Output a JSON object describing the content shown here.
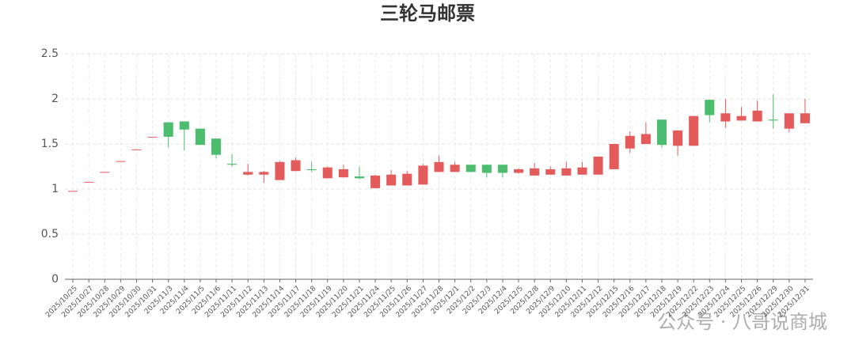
{
  "chart_data": {
    "type": "candlestick",
    "title": "三轮马邮票",
    "categories": [
      "2025/10/25",
      "2025/10/27",
      "2025/10/28",
      "2025/10/29",
      "2025/10/30",
      "2025/10/31",
      "2025/11/3",
      "2025/11/4",
      "2025/11/5",
      "2025/11/6",
      "2025/11/11",
      "2025/11/12",
      "2025/11/13",
      "2025/11/14",
      "2025/11/17",
      "2025/11/18",
      "2025/11/19",
      "2025/11/20",
      "2025/11/21",
      "2025/11/24",
      "2025/11/25",
      "2025/11/26",
      "2025/11/27",
      "2025/11/28",
      "2025/12/1",
      "2025/12/2",
      "2025/12/3",
      "2025/12/4",
      "2025/12/5",
      "2025/12/8",
      "2025/12/9",
      "2025/12/10",
      "2025/12/11",
      "2025/12/12",
      "2025/12/15",
      "2025/12/16",
      "2025/12/17",
      "2025/12/18",
      "2025/12/19",
      "2025/12/22",
      "2025/12/23",
      "2025/12/24",
      "2025/12/25",
      "2025/12/26",
      "2025/12/29",
      "2025/12/30",
      "2025/12/31"
    ],
    "open": [
      0.98,
      1.08,
      1.19,
      1.31,
      1.44,
      1.58,
      1.74,
      1.75,
      1.67,
      1.56,
      1.28,
      1.16,
      1.16,
      1.1,
      1.2,
      1.22,
      1.12,
      1.13,
      1.14,
      1.01,
      1.04,
      1.04,
      1.05,
      1.19,
      1.19,
      1.27,
      1.27,
      1.27,
      1.18,
      1.15,
      1.16,
      1.15,
      1.16,
      1.16,
      1.22,
      1.45,
      1.5,
      1.77,
      1.48,
      1.48,
      1.99,
      1.75,
      1.76,
      1.75,
      1.77,
      1.67,
      1.73
    ],
    "close": [
      0.98,
      1.08,
      1.19,
      1.31,
      1.44,
      1.58,
      1.58,
      1.66,
      1.49,
      1.38,
      1.27,
      1.19,
      1.19,
      1.3,
      1.32,
      1.21,
      1.24,
      1.22,
      1.12,
      1.15,
      1.16,
      1.17,
      1.26,
      1.3,
      1.27,
      1.19,
      1.18,
      1.18,
      1.22,
      1.23,
      1.22,
      1.23,
      1.24,
      1.36,
      1.5,
      1.59,
      1.61,
      1.49,
      1.65,
      1.81,
      1.82,
      1.84,
      1.81,
      1.87,
      1.76,
      1.84,
      1.84
    ],
    "low": [
      0.98,
      1.08,
      1.19,
      1.31,
      1.44,
      1.58,
      1.46,
      1.43,
      1.49,
      1.34,
      1.25,
      1.15,
      1.07,
      1.1,
      1.2,
      1.19,
      1.12,
      1.13,
      1.11,
      1.01,
      1.04,
      1.04,
      1.05,
      1.19,
      1.19,
      1.19,
      1.13,
      1.13,
      1.17,
      1.15,
      1.16,
      1.15,
      1.16,
      1.16,
      1.22,
      1.4,
      1.5,
      1.46,
      1.37,
      1.48,
      1.74,
      1.68,
      1.76,
      1.75,
      1.67,
      1.63,
      1.73
    ],
    "high": [
      0.98,
      1.08,
      1.19,
      1.31,
      1.44,
      1.58,
      1.74,
      1.75,
      1.67,
      1.56,
      1.39,
      1.28,
      1.2,
      1.31,
      1.35,
      1.3,
      1.25,
      1.27,
      1.25,
      1.16,
      1.21,
      1.2,
      1.28,
      1.37,
      1.3,
      1.27,
      1.27,
      1.27,
      1.23,
      1.29,
      1.25,
      1.3,
      1.3,
      1.36,
      1.5,
      1.64,
      1.74,
      1.77,
      1.65,
      1.81,
      1.99,
      2.0,
      1.91,
      1.98,
      2.05,
      1.84,
      2.0
    ],
    "up_color": "#e35b5b",
    "down_color": "#4cbd6e",
    "ylim": [
      0,
      2.5
    ],
    "yticks": [
      0,
      0.5,
      1,
      1.5,
      2,
      2.5
    ],
    "grid": true,
    "watermark": "公众号 · 八哥说商城"
  }
}
